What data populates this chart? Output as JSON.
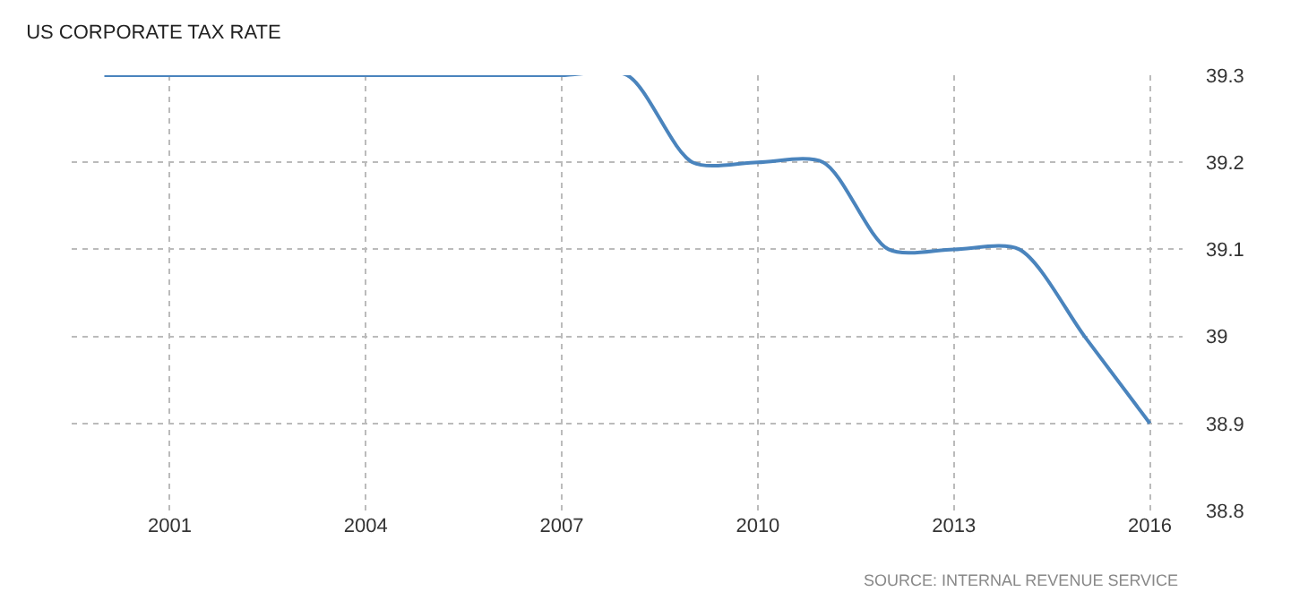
{
  "chart_data": {
    "type": "line",
    "title": "US CORPORATE TAX RATE",
    "x": [
      2000,
      2001,
      2002,
      2003,
      2004,
      2005,
      2006,
      2007,
      2008,
      2009,
      2010,
      2011,
      2012,
      2013,
      2014,
      2015,
      2016
    ],
    "series": [
      {
        "color": "#4a84bd",
        "values": [
          39.3,
          39.3,
          39.3,
          39.3,
          39.3,
          39.3,
          39.3,
          39.3,
          39.3,
          39.2,
          39.2,
          39.2,
          39.1,
          39.1,
          39.1,
          39.0,
          38.9
        ]
      }
    ],
    "xlim": [
      1999.5,
      2016.5
    ],
    "xticks": [
      2001,
      2004,
      2007,
      2010,
      2013,
      2016
    ],
    "ylim": [
      38.8,
      39.3
    ],
    "yticks": [
      38.8,
      38.9,
      {
        "value": 39,
        "label": "39"
      },
      39.1,
      39.2,
      39.3
    ],
    "grid": true,
    "marker": "none",
    "line_style": "solid",
    "annotations": [
      "SOURCE: INTERNAL REVENUE SERVICE"
    ]
  }
}
